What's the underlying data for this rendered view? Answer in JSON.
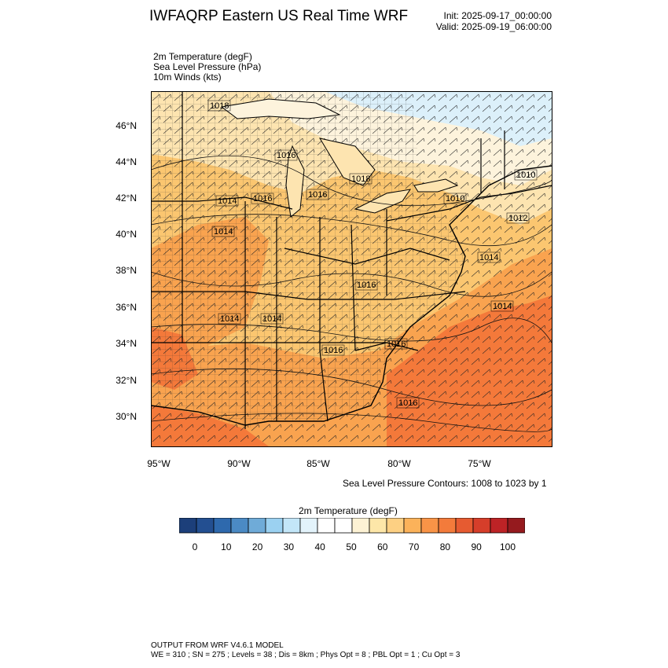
{
  "title": "IWFAQRP Eastern US Real Time WRF",
  "init": "Init: 2025-09-17_00:00:00",
  "valid": "Valid: 2025-09-19_06:00:00",
  "fields": [
    "2m Temperature   (degF)",
    "Sea Level Pressure   (hPa)",
    "10m Winds   (kts)"
  ],
  "map": {
    "lat_labels": [
      "46°N",
      "44°N",
      "42°N",
      "40°N",
      "38°N",
      "36°N",
      "34°N",
      "32°N",
      "30°N"
    ],
    "lon_labels": [
      "95°W",
      "90°W",
      "85°W",
      "80°W",
      "75°W"
    ],
    "pressure_labels": [
      {
        "text": "1018"
      },
      {
        "text": "1016"
      },
      {
        "text": "1018"
      },
      {
        "text": "1010"
      },
      {
        "text": "1014"
      },
      {
        "text": "1016"
      },
      {
        "text": "1016"
      },
      {
        "text": "1010"
      },
      {
        "text": "1014"
      },
      {
        "text": "1012"
      },
      {
        "text": "1014"
      },
      {
        "text": "1016"
      },
      {
        "text": "1014"
      },
      {
        "text": "1014"
      },
      {
        "text": "1014"
      },
      {
        "text": "1016"
      },
      {
        "text": "1016"
      },
      {
        "text": "1016"
      }
    ],
    "colors": {
      "hot": "#f4793a",
      "warm": "#f9a34f",
      "mild": "#fbc670",
      "cool": "#fde4b0",
      "pale": "#fdf3dc",
      "cold": "#dcf0fa",
      "line": "#000000"
    }
  },
  "contour_note": "Sea Level Pressure Contours: 1008 to 1023 by 1",
  "colorbar": {
    "title": "2m Temperature  (degF)",
    "labels": [
      "0",
      "10",
      "20",
      "30",
      "40",
      "50",
      "60",
      "70",
      "80",
      "90",
      "100"
    ],
    "colors": [
      "#1c3f7a",
      "#234f91",
      "#2e69ad",
      "#4b8ac4",
      "#6fabd8",
      "#9bd1f1",
      "#c3e6f8",
      "#e3f3fb",
      "#ffffff",
      "#ffffff",
      "#fdf2d4",
      "#fde6a8",
      "#fdd083",
      "#fbb25a",
      "#f99447",
      "#f37b3b",
      "#e65b31",
      "#d63e2a",
      "#bd2326",
      "#951a1e"
    ]
  },
  "footer": {
    "line1": "OUTPUT FROM WRF V4.6.1 MODEL",
    "line2": "WE = 310 ; SN = 275 ; Levels = 38 ; Dis = 8km ; Phys Opt = 8 ; PBL Opt = 1 ; Cu Opt = 3"
  }
}
